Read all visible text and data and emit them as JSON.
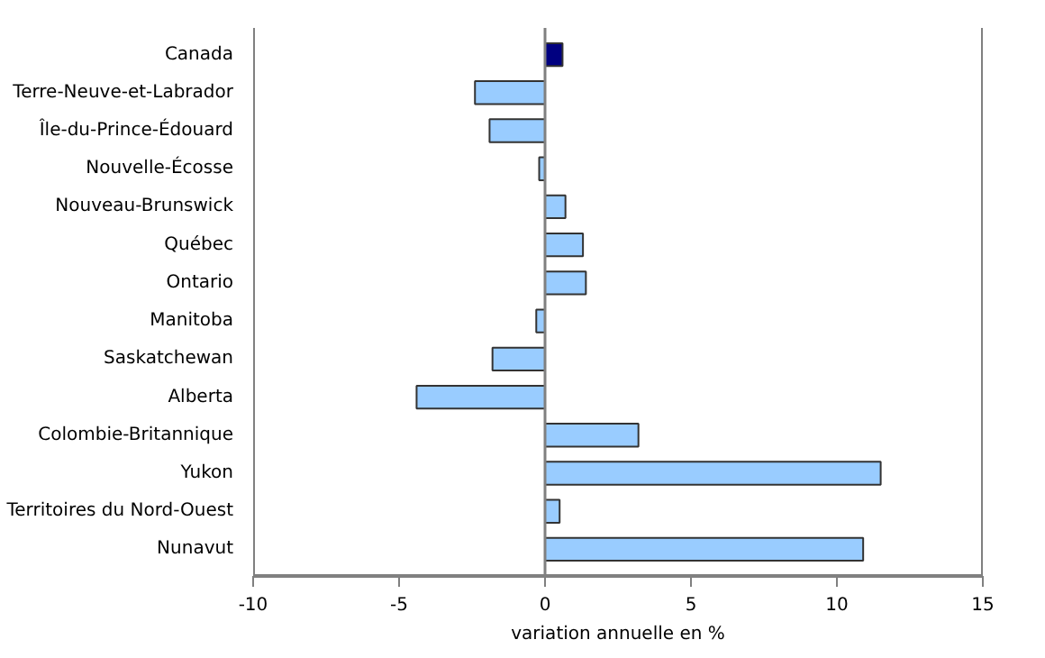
{
  "chart_data": {
    "type": "bar",
    "orientation": "horizontal",
    "xlabel": "variation annuelle en %",
    "categories": [
      "Canada",
      "Terre-Neuve-et-Labrador",
      "Île-du-Prince-Édouard",
      "Nouvelle-Écosse",
      "Nouveau-Brunswick",
      "Québec",
      "Ontario",
      "Manitoba",
      "Saskatchewan",
      "Alberta",
      "Colombie-Britannique",
      "Yukon",
      "Territoires du Nord-Ouest",
      "Nunavut"
    ],
    "values": [
      0.6,
      -2.4,
      -1.9,
      -0.2,
      0.7,
      1.3,
      1.4,
      -0.3,
      -1.8,
      -4.4,
      3.2,
      11.5,
      0.5,
      10.9
    ],
    "colors": [
      "#000080",
      "#99ccff",
      "#99ccff",
      "#99ccff",
      "#99ccff",
      "#99ccff",
      "#99ccff",
      "#99ccff",
      "#99ccff",
      "#99ccff",
      "#99ccff",
      "#99ccff",
      "#99ccff",
      "#99ccff"
    ],
    "xlim": [
      -10,
      15
    ],
    "xticks": [
      -10,
      -5,
      0,
      5,
      10,
      15
    ],
    "ref_lines": [
      {
        "axis": "x",
        "value": 0,
        "color": "#808080"
      }
    ],
    "grid": false
  }
}
